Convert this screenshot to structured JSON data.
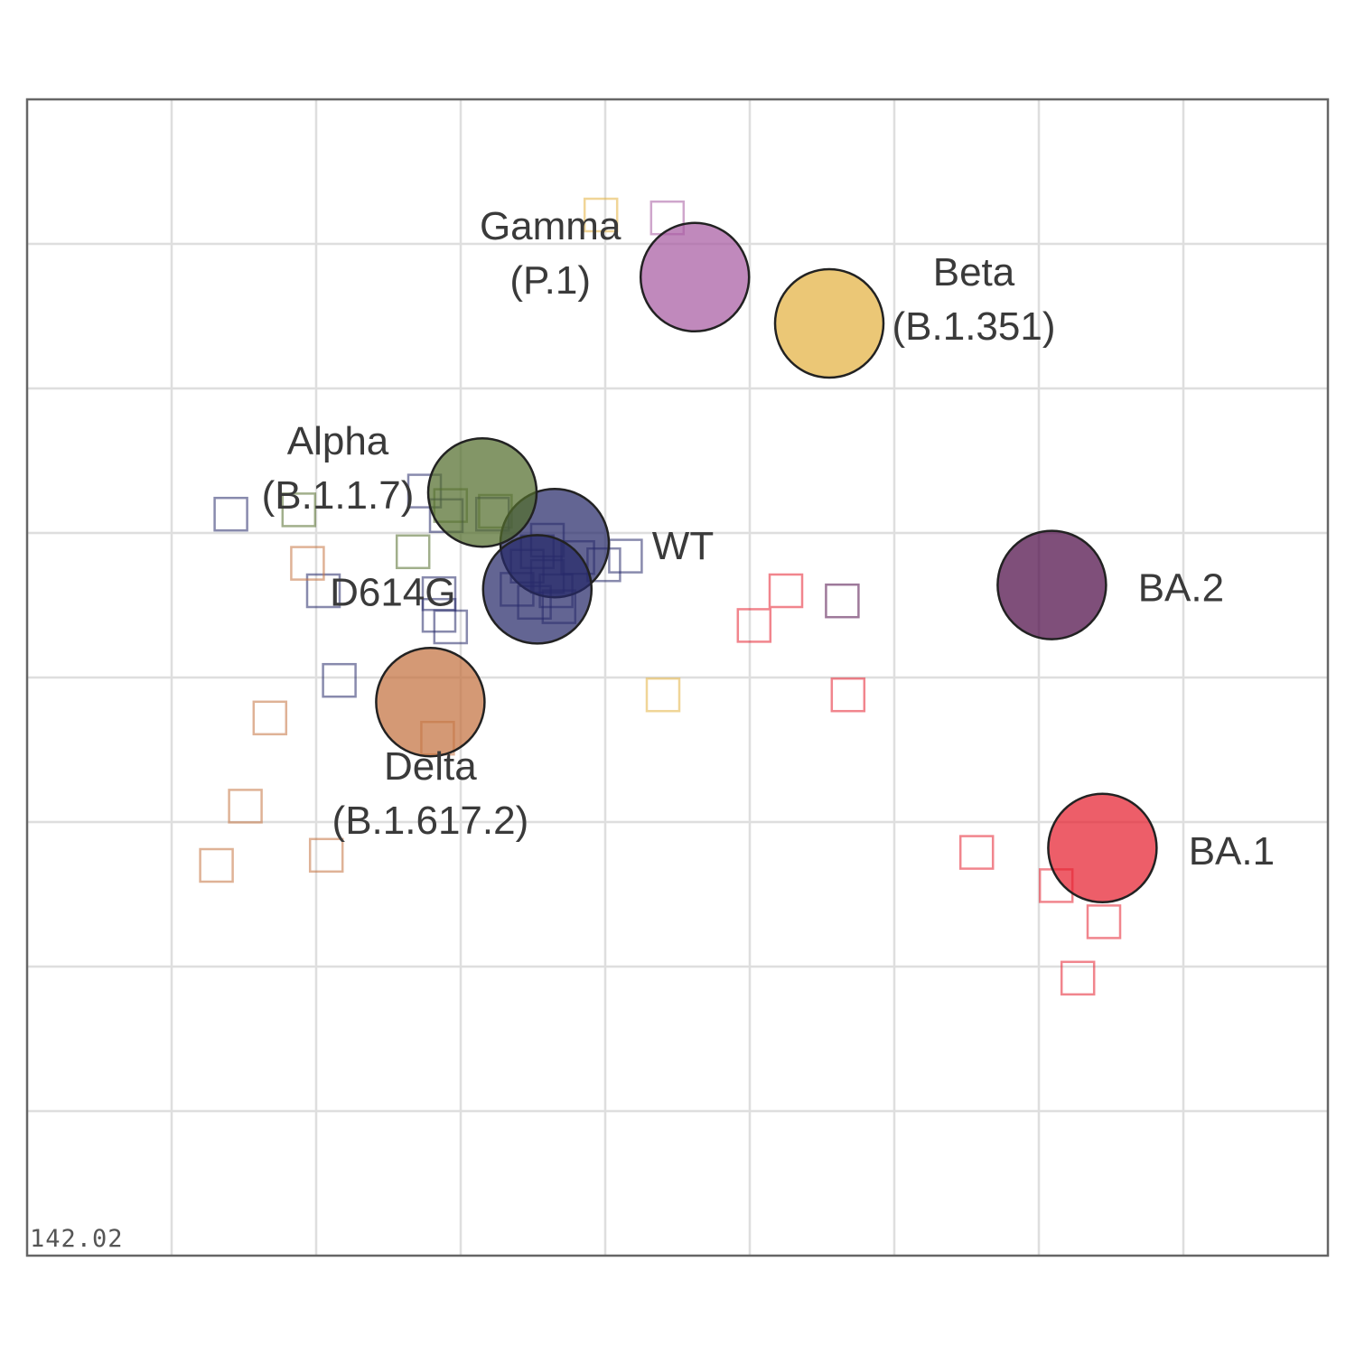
{
  "chart_data": {
    "type": "scatter",
    "title": "",
    "xlabel": "",
    "ylabel": "",
    "xlim": [
      0,
      9
    ],
    "ylim": [
      0,
      8
    ],
    "grid": true,
    "corner_label": "142.02",
    "antigens": [
      {
        "name": "WT",
        "label_lines": [
          "WT"
        ],
        "x": 3.65,
        "y": 4.93,
        "color": "#27296a"
      },
      {
        "name": "D614G",
        "label_lines": [
          "D614G"
        ],
        "x": 3.53,
        "y": 4.61,
        "color": "#27296a"
      },
      {
        "name": "Alpha (B.1.1.7)",
        "label_lines": [
          "Alpha",
          "(B.1.1.7)"
        ],
        "x": 3.15,
        "y": 5.28,
        "color": "#536d2c"
      },
      {
        "name": "Beta (B.1.351)",
        "label_lines": [
          "Beta",
          "(B.1.351)"
        ],
        "x": 5.55,
        "y": 6.45,
        "color": "#e3b241"
      },
      {
        "name": "Gamma (P.1)",
        "label_lines": [
          "Gamma",
          "(P.1)"
        ],
        "x": 4.62,
        "y": 6.77,
        "color": "#a85ca2"
      },
      {
        "name": "Delta (B.1.617.2)",
        "label_lines": [
          "Delta",
          "(B.1.617.2)"
        ],
        "x": 2.79,
        "y": 3.83,
        "color": "#c47240"
      },
      {
        "name": "BA.1",
        "label_lines": [
          "BA.1"
        ],
        "x": 7.44,
        "y": 2.82,
        "color": "#e6202f"
      },
      {
        "name": "BA.2",
        "label_lines": [
          "BA.2"
        ],
        "x": 7.09,
        "y": 4.64,
        "color": "#4e0b47"
      }
    ],
    "sera": [
      {
        "group": "Gamma (P.1)",
        "color": "#e3b241",
        "x": 3.97,
        "y": 7.2
      },
      {
        "group": "Gamma (P.1)",
        "color": "#a85ca2",
        "x": 4.43,
        "y": 7.18
      },
      {
        "group": "Alpha (B.1.1.7)",
        "color": "#27296a",
        "x": 2.75,
        "y": 5.29
      },
      {
        "group": "Alpha (B.1.1.7)",
        "color": "#536d2c",
        "x": 1.88,
        "y": 5.16
      },
      {
        "group": "Alpha (B.1.1.7)",
        "color": "#536d2c",
        "x": 2.93,
        "y": 5.19
      },
      {
        "group": "Alpha (B.1.1.7)",
        "color": "#536d2c",
        "x": 3.24,
        "y": 5.15
      },
      {
        "group": "Alpha (B.1.1.7)",
        "color": "#27296a",
        "x": 2.9,
        "y": 5.12
      },
      {
        "group": "Alpha (B.1.1.7)",
        "color": "#27296a",
        "x": 3.22,
        "y": 5.13
      },
      {
        "group": "Alpha (B.1.1.7)",
        "color": "#27296a",
        "x": 1.41,
        "y": 5.13
      },
      {
        "group": "Alpha (B.1.1.7)",
        "color": "#536d2c",
        "x": 2.67,
        "y": 4.87
      },
      {
        "group": "D614G",
        "color": "#27296a",
        "x": 3.6,
        "y": 4.95
      },
      {
        "group": "D614G",
        "color": "#27296a",
        "x": 3.53,
        "y": 4.87
      },
      {
        "group": "D614G",
        "color": "#27296a",
        "x": 3.81,
        "y": 4.83
      },
      {
        "group": "D614G",
        "color": "#27296a",
        "x": 3.99,
        "y": 4.78
      },
      {
        "group": "D614G",
        "color": "#27296a",
        "x": 4.14,
        "y": 4.84
      },
      {
        "group": "D614G",
        "color": "#27296a",
        "x": 3.46,
        "y": 4.77
      },
      {
        "group": "D614G",
        "color": "#27296a",
        "x": 3.6,
        "y": 4.7
      },
      {
        "group": "D614G",
        "color": "#27296a",
        "x": 3.39,
        "y": 4.61
      },
      {
        "group": "D614G",
        "color": "#27296a",
        "x": 3.66,
        "y": 4.6
      },
      {
        "group": "D614G",
        "color": "#27296a",
        "x": 3.51,
        "y": 4.52
      },
      {
        "group": "D614G",
        "color": "#27296a",
        "x": 3.68,
        "y": 4.49
      },
      {
        "group": "D614G",
        "color": "#27296a",
        "x": 2.85,
        "y": 4.58
      },
      {
        "group": "D614G",
        "color": "#27296a",
        "x": 2.85,
        "y": 4.43
      },
      {
        "group": "D614G",
        "color": "#27296a",
        "x": 2.93,
        "y": 4.35
      },
      {
        "group": "D614G",
        "color": "#27296a",
        "x": 2.05,
        "y": 4.6
      },
      {
        "group": "D614G",
        "color": "#27296a",
        "x": 2.16,
        "y": 3.98
      },
      {
        "group": "Delta (B.1.617.2)",
        "color": "#c47240",
        "x": 1.94,
        "y": 4.79
      },
      {
        "group": "Delta (B.1.617.2)",
        "color": "#c47240",
        "x": 1.68,
        "y": 3.72
      },
      {
        "group": "Delta (B.1.617.2)",
        "color": "#c47240",
        "x": 2.84,
        "y": 3.58
      },
      {
        "group": "Delta (B.1.617.2)",
        "color": "#c47240",
        "x": 1.51,
        "y": 3.11
      },
      {
        "group": "Delta (B.1.617.2)",
        "color": "#c47240",
        "x": 2.07,
        "y": 2.77
      },
      {
        "group": "Delta (B.1.617.2)",
        "color": "#c47240",
        "x": 1.31,
        "y": 2.7
      },
      {
        "group": "Beta (B.1.351)",
        "color": "#e3b241",
        "x": 4.4,
        "y": 3.88
      },
      {
        "group": "BA.1",
        "color": "#e6202f",
        "x": 5.25,
        "y": 4.6
      },
      {
        "group": "BA.1",
        "color": "#e6202f",
        "x": 5.03,
        "y": 4.36
      },
      {
        "group": "BA.2",
        "color": "#4e0b47",
        "x": 5.64,
        "y": 4.53
      },
      {
        "group": "BA.1",
        "color": "#e6202f",
        "x": 5.68,
        "y": 3.88
      },
      {
        "group": "BA.1",
        "color": "#e6202f",
        "x": 6.57,
        "y": 2.79
      },
      {
        "group": "BA.1",
        "color": "#e6202f",
        "x": 7.12,
        "y": 2.56
      },
      {
        "group": "BA.1",
        "color": "#e6202f",
        "x": 7.45,
        "y": 2.31
      },
      {
        "group": "BA.1",
        "color": "#e6202f",
        "x": 7.27,
        "y": 1.92
      }
    ]
  }
}
